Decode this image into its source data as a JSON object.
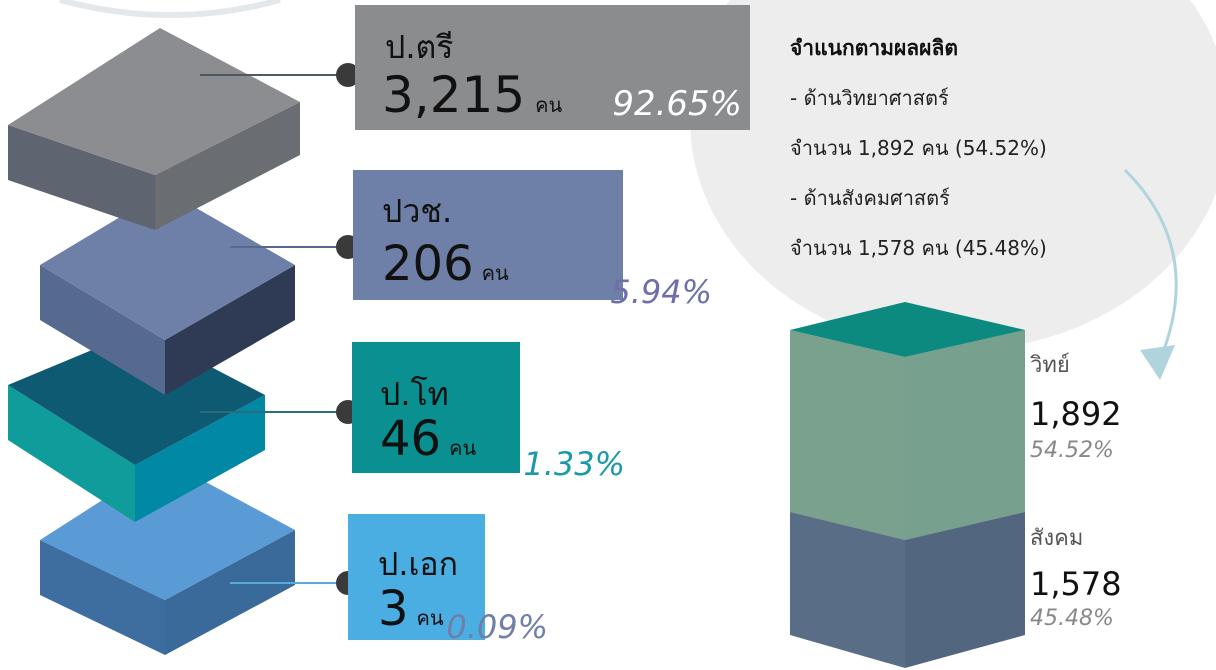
{
  "levels": [
    {
      "label": "ป.ตรี",
      "count": "3,215",
      "unit": "คน",
      "percent": "92.65%"
    },
    {
      "label": "ปวช.",
      "count": "206",
      "unit": "คน",
      "percent": "5.94%"
    },
    {
      "label": "ป.โท",
      "count": "46",
      "unit": "คน",
      "percent": "1.33%"
    },
    {
      "label": "ป.เอก",
      "count": "3",
      "unit": "คน",
      "percent": "0.09%"
    }
  ],
  "breakdown": {
    "title": "จำแนกตามผลผลิต",
    "lines": [
      "- ด้านวิทยาศาสตร์",
      "จำนวน 1,892 คน (54.52%)",
      "- ด้านสังคมศาสตร์",
      "จำนวน 1,578 คน (45.48%)"
    ]
  },
  "groups": [
    {
      "label": "วิทย์",
      "count": "1,892",
      "percent": "54.52%"
    },
    {
      "label": "สังคม",
      "count": "1,578",
      "percent": "45.48%"
    }
  ]
}
